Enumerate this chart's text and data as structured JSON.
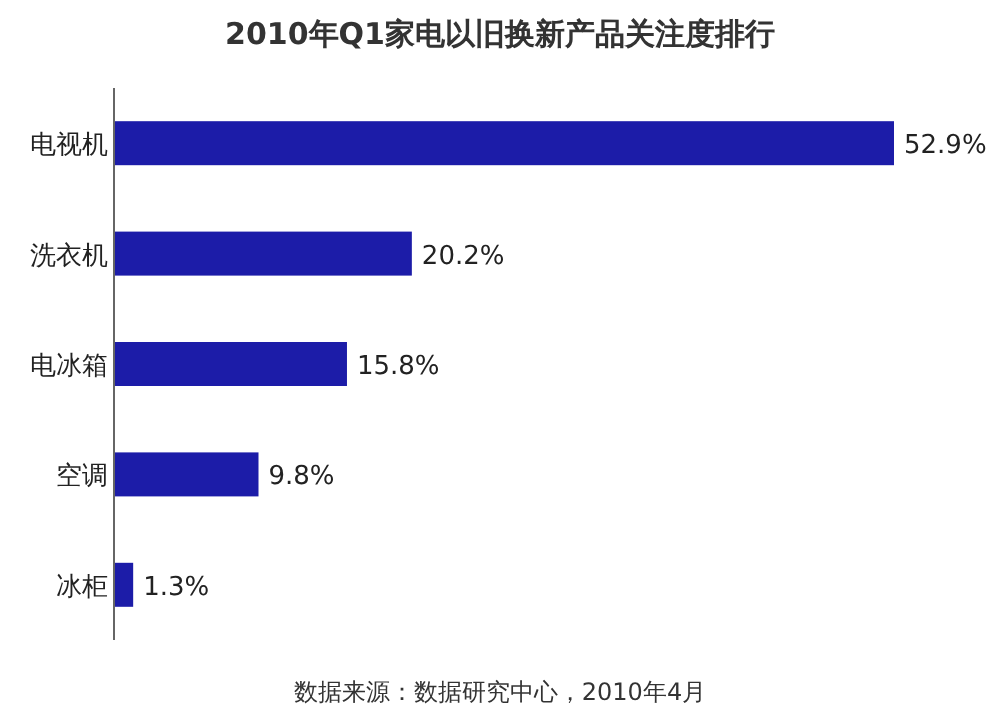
{
  "chart_data": {
    "type": "bar",
    "orientation": "horizontal",
    "title": "2010年Q1家电以旧换新产品关注度排行",
    "categories": [
      "电视机",
      "洗衣机",
      "电冰箱",
      "空调",
      "冰柜"
    ],
    "values": [
      52.9,
      20.2,
      15.8,
      9.8,
      1.3
    ],
    "value_labels": [
      "52.9%",
      "20.2%",
      "15.8%",
      "9.8%",
      "1.3%"
    ],
    "color": "#1c1ca8",
    "annotations": [
      "数据来源：数据研究中心，2010年4月"
    ]
  }
}
